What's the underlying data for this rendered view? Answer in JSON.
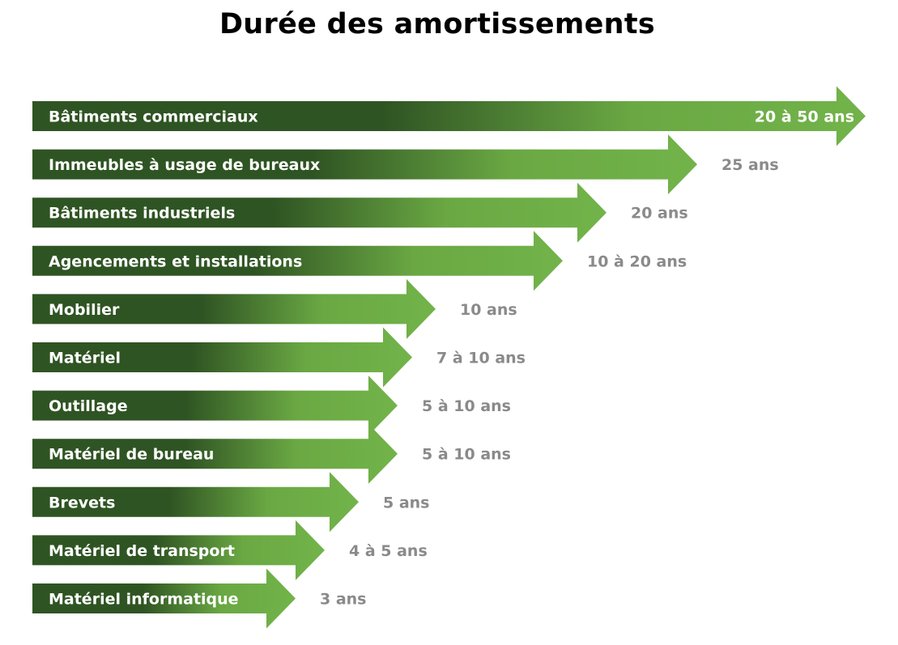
{
  "chart_data": {
    "type": "bar",
    "orientation": "horizontal",
    "title": "Durée des amortissements",
    "categories": [
      "Bâtiments commerciaux",
      "Immeubles à usage de bureaux",
      "Bâtiments industriels",
      "Agencements et installations",
      "Mobilier",
      "Matériel",
      "Outillage",
      "Matériel de bureau",
      "Brevets",
      "Matériel de transport",
      "Matériel informatique"
    ],
    "value_labels": [
      "20 à 50 ans",
      "25 ans",
      "20 ans",
      "10 à 20 ans",
      "10 ans",
      "7 à 10 ans",
      "5 à 10 ans",
      "5 à 10 ans",
      "5 ans",
      "4 à 5 ans",
      "3 ans"
    ],
    "values": [
      50,
      25,
      20,
      20,
      10,
      10,
      10,
      10,
      5,
      5,
      3
    ],
    "colors": {
      "dark_green": "#2f5423",
      "mid_green": "#6aa843",
      "light_green": "#72b34a",
      "value_label": "#8a8a8a",
      "category_label": "#ffffff"
    }
  }
}
